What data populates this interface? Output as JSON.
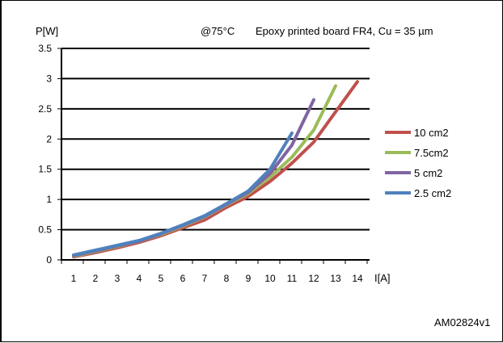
{
  "figure": {
    "reference_id": "AM02824v1"
  },
  "chart_data": {
    "type": "line",
    "title": "",
    "annotations": [
      "@75°C",
      "Epoxy printed board FR4, Cu = 35 µm"
    ],
    "xlabel": "I[A]",
    "ylabel": "P[W]",
    "xlim": [
      1,
      14
    ],
    "ylim": [
      0,
      3.5
    ],
    "x_ticks": [
      1,
      2,
      3,
      4,
      5,
      6,
      7,
      8,
      9,
      10,
      11,
      12,
      13,
      14
    ],
    "y_ticks": [
      0,
      0.5,
      1,
      1.5,
      2,
      2.5,
      3,
      3.5
    ],
    "y_tick_labels": [
      "0",
      "0.5",
      "1",
      "1.5",
      "2",
      "2.5",
      "3",
      "3.5"
    ],
    "grid": "horizontal",
    "legend_position": "right",
    "series": [
      {
        "name": "10 cm2",
        "color": "#c0504d",
        "points": [
          [
            1,
            0.05
          ],
          [
            2,
            0.12
          ],
          [
            3,
            0.2
          ],
          [
            4,
            0.29
          ],
          [
            5,
            0.4
          ],
          [
            6,
            0.53
          ],
          [
            7,
            0.66
          ],
          [
            8,
            0.87
          ],
          [
            9,
            1.05
          ],
          [
            10,
            1.3
          ],
          [
            11,
            1.6
          ],
          [
            12,
            1.95
          ],
          [
            13,
            2.45
          ],
          [
            14,
            2.95
          ]
        ]
      },
      {
        "name": "7.5cm2",
        "color": "#9bbb59",
        "points": [
          [
            1,
            0.06
          ],
          [
            2,
            0.14
          ],
          [
            3,
            0.22
          ],
          [
            4,
            0.31
          ],
          [
            5,
            0.42
          ],
          [
            6,
            0.56
          ],
          [
            7,
            0.71
          ],
          [
            8,
            0.91
          ],
          [
            9,
            1.1
          ],
          [
            10,
            1.37
          ],
          [
            11,
            1.7
          ],
          [
            12,
            2.15
          ],
          [
            13,
            2.88
          ]
        ]
      },
      {
        "name": "5 cm2",
        "color": "#8064a2",
        "points": [
          [
            1,
            0.07
          ],
          [
            2,
            0.15
          ],
          [
            3,
            0.23
          ],
          [
            4,
            0.31
          ],
          [
            5,
            0.43
          ],
          [
            6,
            0.57
          ],
          [
            7,
            0.72
          ],
          [
            8,
            0.92
          ],
          [
            9,
            1.12
          ],
          [
            10,
            1.43
          ],
          [
            11,
            1.9
          ],
          [
            12,
            2.65
          ]
        ]
      },
      {
        "name": "2.5 cm2",
        "color": "#4f81bd",
        "points": [
          [
            1,
            0.08
          ],
          [
            2,
            0.16
          ],
          [
            3,
            0.24
          ],
          [
            4,
            0.32
          ],
          [
            5,
            0.44
          ],
          [
            6,
            0.58
          ],
          [
            7,
            0.73
          ],
          [
            8,
            0.93
          ],
          [
            9,
            1.14
          ],
          [
            10,
            1.5
          ],
          [
            11,
            2.1
          ]
        ]
      }
    ]
  }
}
